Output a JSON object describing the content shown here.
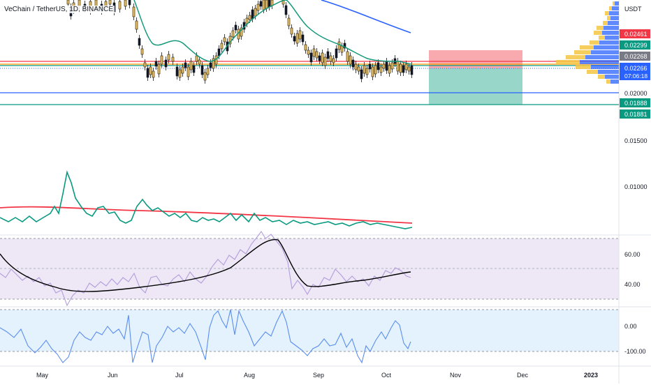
{
  "symbol": {
    "pair": "VeChain / TetherUS",
    "interval": "1D",
    "exchange": "BINANCE",
    "separator": ", "
  },
  "colors": {
    "bull_candle": "#f0c35a",
    "bear_candle": "#131722",
    "ema_short": "#14997a",
    "ema_long": "#2962ff",
    "red_line": "#f23645",
    "orange_line": "#ff9800",
    "green_line": "#089981",
    "stop_zone": "#f7a1a6",
    "target_zone": "#92d4c6",
    "rsi_band": "#ede7f6",
    "rsi_line": "#b39ddb",
    "rsi_ma": "#000000",
    "cci_band": "#e3f2fd",
    "cci_line": "#5b8def",
    "vol_ind_line": "#089981",
    "vol_ind_ma": "#f23645",
    "volume_profile_up": "#2962ff",
    "volume_profile_down": "#f5c542"
  },
  "price_axis": {
    "unit": "USDT",
    "ticks": [
      "0.02000",
      "0.01500",
      "0.01000"
    ],
    "tags": [
      {
        "value": "0.02461",
        "bg": "#f23645",
        "fg": "#ffffff"
      },
      {
        "value": "0.02299",
        "bg": "#089981",
        "fg": "#ffffff"
      },
      {
        "value": "0.02268",
        "bg": "#787b86",
        "fg": "#ffffff"
      },
      {
        "value": "0.02266",
        "bg": "#2962ff",
        "fg": "#ffffff",
        "sub": "07:06:18"
      },
      {
        "value": "0.01888",
        "bg": "#089981",
        "fg": "#ffffff"
      },
      {
        "value": "0.01881",
        "bg": "#089981",
        "fg": "#ffffff"
      }
    ]
  },
  "time_axis": {
    "labels": [
      "May",
      "Jun",
      "Jul",
      "Aug",
      "Sep",
      "Oct",
      "Nov",
      "Dec",
      "2023"
    ]
  },
  "rsi_axis": {
    "ticks": [
      "60.00",
      "40.00"
    ]
  },
  "cci_axis": {
    "ticks": [
      "0.00",
      "-100.00"
    ]
  },
  "chart_data": {
    "type": "candlestick",
    "price_levels": {
      "red_resistance": 0.02299,
      "orange_level": 0.02268,
      "green_level": 0.02266,
      "blue_support": 0.02,
      "green_support": 0.01888,
      "position_stop": 0.02461,
      "position_entry": 0.02266,
      "position_target": 0.01881
    },
    "rsi_levels": [
      70,
      50,
      30
    ],
    "cci_levels": [
      100,
      0,
      -100
    ]
  }
}
